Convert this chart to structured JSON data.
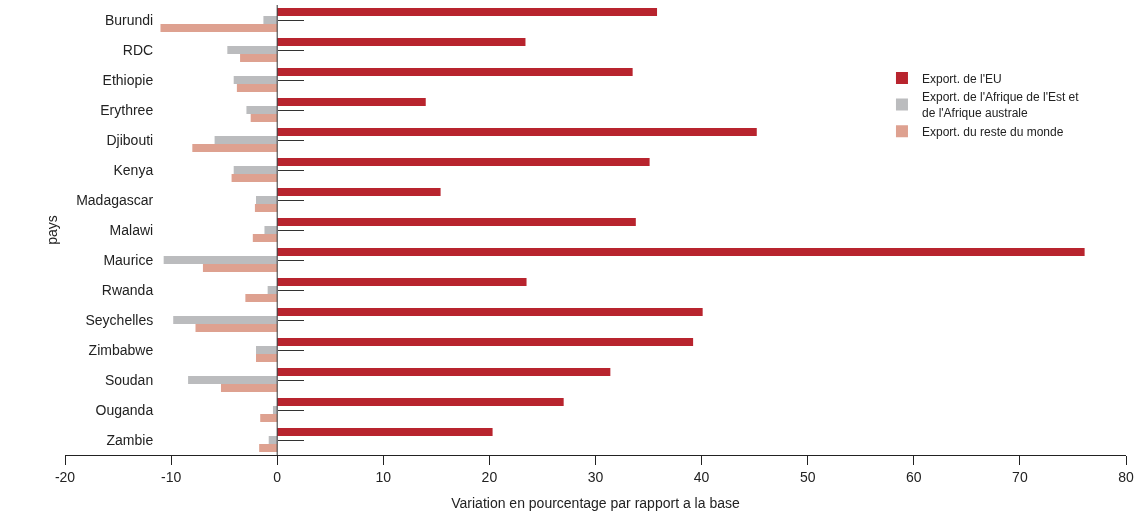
{
  "chart_data": {
    "type": "bar",
    "orientation": "horizontal",
    "xlabel": "Variation en pourcentage par rapport a la base",
    "ylabel": "pays",
    "categories": [
      "Burundi",
      "RDC",
      "Ethiopie",
      "Erythree",
      "Djibouti",
      "Kenya",
      "Madagascar",
      "Malawi",
      "Maurice",
      "Rwanda",
      "Seychelles",
      "Zimbabwe",
      "Soudan",
      "Ouganda",
      "Zambie"
    ],
    "series": [
      {
        "name": "Export. de l'EU",
        "color": "#b8242e",
        "values": [
          35.8,
          23.4,
          33.5,
          14.0,
          45.2,
          35.1,
          15.4,
          33.8,
          76.1,
          23.5,
          40.1,
          39.2,
          31.4,
          27.0,
          20.3
        ]
      },
      {
        "name": "Export. de l'Afrique de l'Est et de l'Afrique australe",
        "color": "#bbbcbe",
        "values": [
          -1.3,
          -4.7,
          -4.1,
          -2.9,
          -5.9,
          -4.1,
          -2.0,
          -1.2,
          -10.7,
          -0.9,
          -9.8,
          -2.0,
          -8.4,
          -0.4,
          -0.8
        ]
      },
      {
        "name": "Export. du reste du monde",
        "color": "#dea190",
        "values": [
          -11.0,
          -3.5,
          -3.8,
          -2.5,
          -8.0,
          -4.3,
          -2.1,
          -2.3,
          -7.0,
          -3.0,
          -7.7,
          -2.0,
          -5.3,
          -1.6,
          -1.7
        ]
      }
    ],
    "xlim": [
      -20,
      80
    ],
    "xticks": [
      -20,
      -10,
      0,
      10,
      20,
      30,
      40,
      50,
      60,
      70,
      80
    ],
    "grid": false,
    "legend": "right",
    "ref_lines": [
      {
        "axis": "x",
        "value": 0
      }
    ]
  }
}
